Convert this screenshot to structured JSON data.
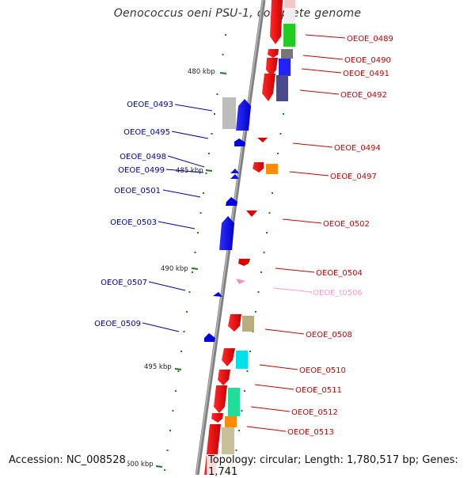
{
  "title": "Oenococcus oeni PSU-1, complete genome",
  "footer": {
    "accession": "Accession: NC_008528",
    "info": "Topology: circular; Length: 1,780,517 bp; Genes: 1,741"
  },
  "colors": {
    "backbone": "#8c8c8c",
    "forward_label": "#cc0000",
    "reverse_label": "#0000aa",
    "trna_label": "#ff99cc",
    "tick": "#1f7a1f"
  },
  "ticks": [
    {
      "label": "480 kbp"
    },
    {
      "label": "485 kbp"
    },
    {
      "label": "490 kbp"
    },
    {
      "label": "495 kbp"
    },
    {
      "label": "500 kbp"
    }
  ],
  "genes_right": [
    {
      "label": "OEOE_0489"
    },
    {
      "label": "OEOE_0490"
    },
    {
      "label": "OEOE_0491"
    },
    {
      "label": "OEOE_0492"
    },
    {
      "label": "OEOE_0494"
    },
    {
      "label": "OEOE_0497"
    },
    {
      "label": "OEOE_0502"
    },
    {
      "label": "OEOE_0504"
    },
    {
      "label": "OEOE_t0506"
    },
    {
      "label": "OEOE_0508"
    },
    {
      "label": "OEOE_0510"
    },
    {
      "label": "OEOE_0511"
    },
    {
      "label": "OEOE_0512"
    },
    {
      "label": "OEOE_0513"
    }
  ],
  "genes_left": [
    {
      "label": "OEOE_0493"
    },
    {
      "label": "OEOE_0495"
    },
    {
      "label": "OEOE_0498"
    },
    {
      "label": "OEOE_0499"
    },
    {
      "label": "OEOE_0501"
    },
    {
      "label": "OEOE_0503"
    },
    {
      "label": "OEOE_0507"
    },
    {
      "label": "OEOE_0509"
    }
  ]
}
